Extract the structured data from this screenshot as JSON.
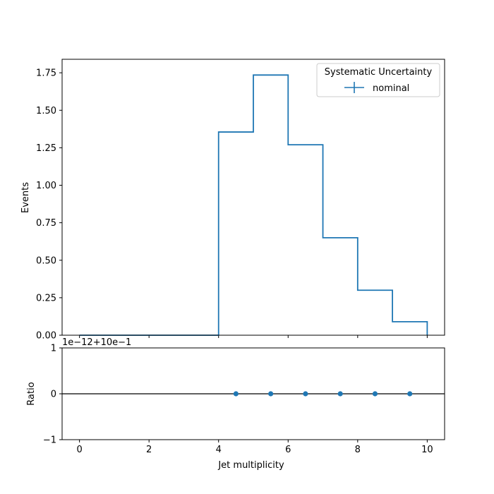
{
  "chart_data": [
    {
      "type": "step",
      "xlabel": "",
      "ylabel": "Events",
      "xlim": [
        -0.5,
        10.5
      ],
      "ylim": [
        0,
        1.84
      ],
      "x_ticks": [
        0,
        2,
        4,
        6,
        8,
        10
      ],
      "y_ticks": [
        0.0,
        0.25,
        0.5,
        0.75,
        1.0,
        1.25,
        1.5,
        1.75
      ],
      "y_tick_labels": [
        "0.00",
        "0.25",
        "0.50",
        "0.75",
        "1.00",
        "1.25",
        "1.50",
        "1.75"
      ],
      "bin_edges": [
        0,
        1,
        2,
        3,
        4,
        5,
        6,
        7,
        8,
        9,
        10
      ],
      "series": [
        {
          "name": "nominal",
          "color": "#1f77b4",
          "values": [
            0,
            0,
            0,
            0,
            1.355,
            1.735,
            1.27,
            0.65,
            0.3,
            0.09
          ]
        }
      ],
      "legend": {
        "title": "Systematic Uncertainty",
        "position": "top-right"
      }
    },
    {
      "type": "scatter",
      "xlabel": "Jet multiplicity",
      "ylabel": "Ratio",
      "xlim": [
        -0.5,
        10.5
      ],
      "ylim": [
        -1,
        1
      ],
      "x_ticks": [
        0,
        2,
        4,
        6,
        8,
        10
      ],
      "x_tick_labels": [
        "0",
        "2",
        "4",
        "6",
        "8",
        "10"
      ],
      "y_ticks": [
        -1,
        0,
        1
      ],
      "y_tick_labels": [
        "−1",
        "0",
        "1"
      ],
      "offset_text": "1e−12+10e−1",
      "reference_line": 0,
      "series": [
        {
          "name": "nominal",
          "color": "#1f77b4",
          "x": [
            4.5,
            5.5,
            6.5,
            7.5,
            8.5,
            9.5
          ],
          "y": [
            0,
            0,
            0,
            0,
            0,
            0
          ]
        }
      ]
    }
  ]
}
